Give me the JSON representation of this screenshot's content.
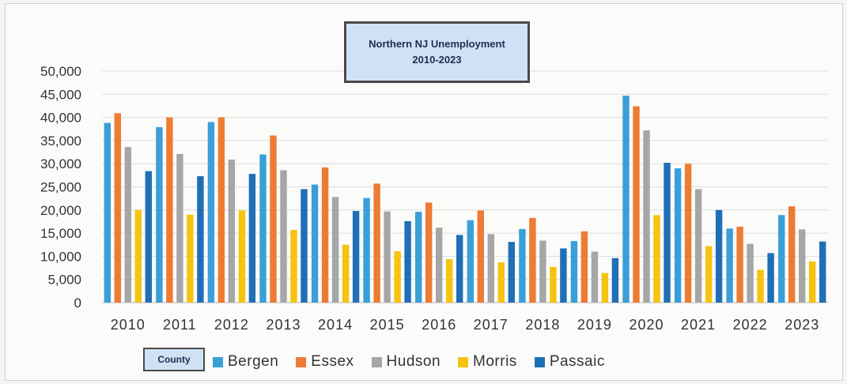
{
  "chart_data": {
    "type": "bar",
    "title": "Northern NJ Unemployment",
    "subtitle": "2010-2023",
    "xlabel": "",
    "ylabel": "",
    "ylim": [
      0,
      50000
    ],
    "yticks": [
      "0",
      "5,000",
      "10,000",
      "15,000",
      "20,000",
      "25,000",
      "30,000",
      "35,000",
      "40,000",
      "45,000",
      "50,000"
    ],
    "grid": true,
    "legend_title": "County",
    "legend_position": "bottom",
    "categories": [
      "2010",
      "2011",
      "2012",
      "2013",
      "2014",
      "2015",
      "2016",
      "2017",
      "2018",
      "2019",
      "2020",
      "2021",
      "2022",
      "2023"
    ],
    "series": [
      {
        "name": "Bergen",
        "color": "#3a9fd8",
        "values": [
          38800,
          37900,
          39000,
          32000,
          25500,
          22600,
          19600,
          17800,
          15900,
          13300,
          44700,
          29000,
          16000,
          18900
        ]
      },
      {
        "name": "Essex",
        "color": "#ee7b32",
        "values": [
          40900,
          40000,
          40000,
          36100,
          29200,
          25700,
          21600,
          19900,
          18300,
          15400,
          42400,
          30000,
          16400,
          20800
        ]
      },
      {
        "name": "Hudson",
        "color": "#a6a6a6",
        "values": [
          33600,
          32100,
          30900,
          28600,
          22800,
          19700,
          16200,
          14800,
          13400,
          11000,
          37200,
          24500,
          12700,
          15800
        ]
      },
      {
        "name": "Morris",
        "color": "#f5c310",
        "values": [
          20000,
          19000,
          19900,
          15700,
          12500,
          11100,
          9400,
          8700,
          7700,
          6400,
          18900,
          12200,
          7100,
          8900
        ]
      },
      {
        "name": "Passaic",
        "color": "#1f6fb6",
        "values": [
          28400,
          27300,
          27800,
          24500,
          19800,
          17600,
          14600,
          13100,
          11700,
          9600,
          30200,
          20000,
          10700,
          13200
        ]
      }
    ]
  }
}
